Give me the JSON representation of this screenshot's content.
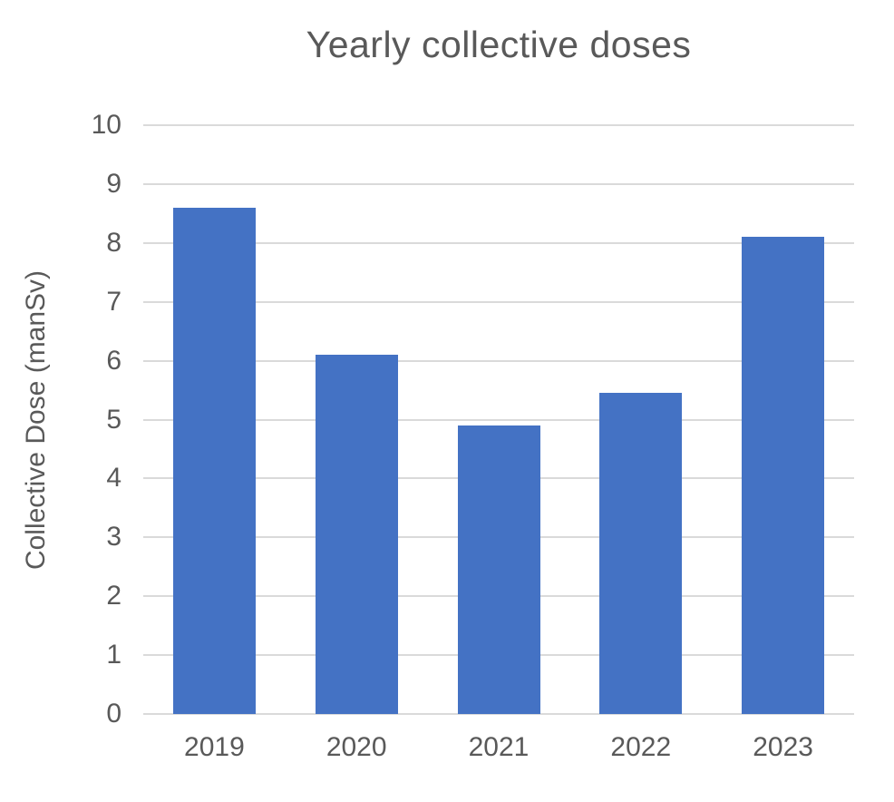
{
  "chart_data": {
    "type": "bar",
    "title": "Yearly collective doses",
    "categories": [
      "2019",
      "2020",
      "2021",
      "2022",
      "2023"
    ],
    "values": [
      8.6,
      6.1,
      4.9,
      5.45,
      8.1
    ],
    "xlabel": "",
    "ylabel": "Collective Dose (manSv)",
    "ylim": [
      0,
      10
    ],
    "ytick_step": 1,
    "ytick_labels": [
      "0",
      "1",
      "2",
      "3",
      "4",
      "5",
      "6",
      "7",
      "8",
      "9",
      "10"
    ],
    "grid": true,
    "legend": false,
    "bar_color": "#4472C4",
    "text_color": "#595959",
    "gridline_color": "#DADADA",
    "background_color": "#FFFFFF"
  }
}
